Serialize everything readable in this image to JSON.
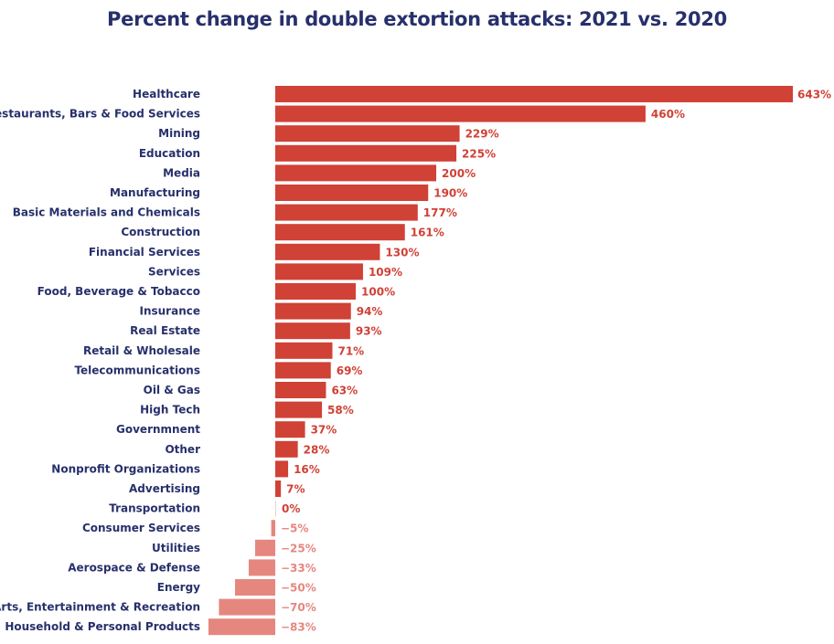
{
  "chart_data": {
    "type": "bar",
    "orientation": "horizontal",
    "title": "Percent change in double extortion attacks: 2021 vs. 2020",
    "categories": [
      "Healthcare",
      "Restaurants, Bars & Food Services",
      "Mining",
      "Education",
      "Media",
      "Manufacturing",
      "Basic Materials and Chemicals",
      "Construction",
      "Financial Services",
      "Services",
      "Food, Beverage & Tobacco",
      "Insurance",
      "Real Estate",
      "Retail & Wholesale",
      "Telecommunications",
      "Oil & Gas",
      "High Tech",
      "Governmnent",
      "Other",
      "Nonprofit Organizations",
      "Advertising",
      "Transportation",
      "Consumer Services",
      "Utilities",
      "Aerospace & Defense",
      "Energy",
      "Arts, Entertainment & Recreation",
      "Household & Personal Products"
    ],
    "values": [
      643,
      460,
      229,
      225,
      200,
      190,
      177,
      161,
      130,
      109,
      100,
      94,
      93,
      71,
      69,
      63,
      58,
      37,
      28,
      16,
      7,
      0,
      -5,
      -25,
      -33,
      -50,
      -70,
      -83
    ],
    "value_labels": [
      "643%",
      "460%",
      "229%",
      "225%",
      "200%",
      "190%",
      "177%",
      "161%",
      "130%",
      "109%",
      "100%",
      "94%",
      "93%",
      "71%",
      "69%",
      "63%",
      "58%",
      "37%",
      "28%",
      "16%",
      "7%",
      "0%",
      "−5%",
      "−25%",
      "−33%",
      "−50%",
      "−70%",
      "−83%"
    ],
    "unit": "%",
    "xlim": [
      -83,
      643
    ],
    "grid": false,
    "colors": {
      "positive": "#d04136",
      "negative": "#e5877f",
      "text": "#27306b"
    }
  }
}
